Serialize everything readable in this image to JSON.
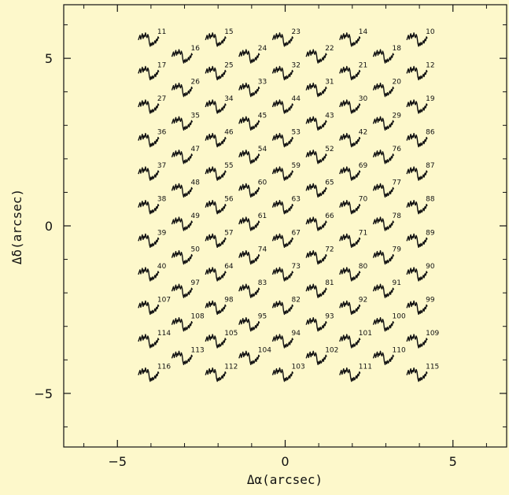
{
  "chart_data": {
    "type": "scatter",
    "xlabel": "Δα(arcsec)",
    "ylabel": "Δδ(arcsec)",
    "xlim": [
      -6.6,
      6.6
    ],
    "ylim": [
      -6.6,
      6.6
    ],
    "x_ticks": [
      -5,
      0,
      5
    ],
    "y_ticks": [
      -5,
      0,
      5
    ],
    "x_tick_labels": [
      "−5",
      "0",
      "5"
    ],
    "y_tick_labels": [
      "−5",
      "0",
      "5"
    ],
    "grid": false,
    "marker": "spectrum",
    "columns": [
      {
        "x": -4.0,
        "y_top": 5.5,
        "labels": [
          "11",
          "17",
          "27",
          "36",
          "37",
          "38",
          "39",
          "40",
          "107",
          "114",
          "116"
        ]
      },
      {
        "x": -3.0,
        "y_top": 5.0,
        "labels": [
          "16",
          "26",
          "35",
          "47",
          "48",
          "49",
          "50",
          "97",
          "108",
          "113"
        ]
      },
      {
        "x": -2.0,
        "y_top": 5.5,
        "labels": [
          "15",
          "25",
          "34",
          "46",
          "55",
          "56",
          "57",
          "64",
          "98",
          "105",
          "112"
        ]
      },
      {
        "x": -1.0,
        "y_top": 5.0,
        "labels": [
          "24",
          "33",
          "45",
          "54",
          "60",
          "61",
          "74",
          "83",
          "95",
          "104"
        ]
      },
      {
        "x": 0.0,
        "y_top": 5.5,
        "labels": [
          "23",
          "32",
          "44",
          "53",
          "59",
          "63",
          "67",
          "73",
          "82",
          "94",
          "103"
        ]
      },
      {
        "x": 1.0,
        "y_top": 5.0,
        "labels": [
          "22",
          "31",
          "43",
          "52",
          "65",
          "66",
          "72",
          "81",
          "93",
          "102"
        ]
      },
      {
        "x": 2.0,
        "y_top": 5.5,
        "labels": [
          "14",
          "21",
          "30",
          "42",
          "69",
          "70",
          "71",
          "80",
          "92",
          "101",
          "111"
        ]
      },
      {
        "x": 3.0,
        "y_top": 5.0,
        "labels": [
          "18",
          "20",
          "29",
          "76",
          "77",
          "78",
          "79",
          "91",
          "100",
          "110"
        ]
      },
      {
        "x": 4.0,
        "y_top": 5.5,
        "labels": [
          "10",
          "12",
          "19",
          "86",
          "87",
          "88",
          "89",
          "90",
          "99",
          "109",
          "115"
        ]
      }
    ],
    "row_spacing": 1.0
  }
}
